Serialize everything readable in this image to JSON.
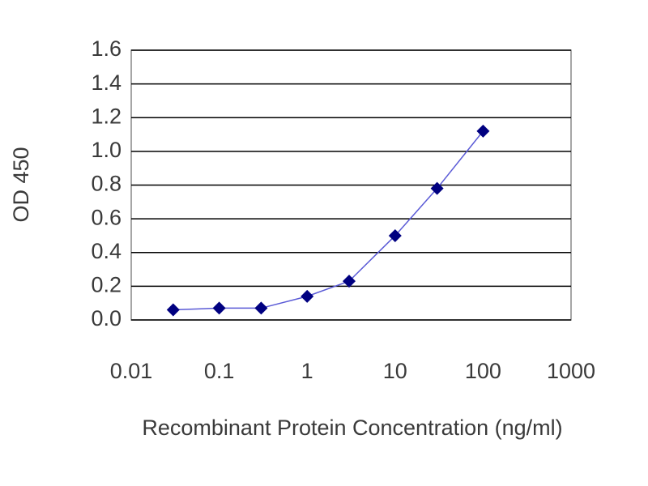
{
  "chart_data": {
    "type": "line",
    "x_label": "Recombinant Protein Concentration (ng/ml)",
    "y_label": "OD 450",
    "x": [
      0.03,
      0.1,
      0.3,
      1,
      3,
      10,
      30,
      100
    ],
    "values": [
      0.06,
      0.07,
      0.07,
      0.14,
      0.23,
      0.5,
      0.78,
      1.12
    ],
    "color": "#000080",
    "line_color": "#5a5ad6",
    "x_log": true,
    "xlim": [
      0.01,
      1000
    ],
    "xticks": [
      0.01,
      0.1,
      1,
      10,
      100,
      1000
    ],
    "ylim": [
      0,
      1.6
    ],
    "yticks": [
      {
        "value": 0,
        "label": "0.0"
      },
      0.2,
      0.4,
      0.6,
      0.8,
      {
        "value": 1,
        "label": "1.0"
      },
      1.2,
      1.4,
      1.6
    ],
    "grid": true
  }
}
